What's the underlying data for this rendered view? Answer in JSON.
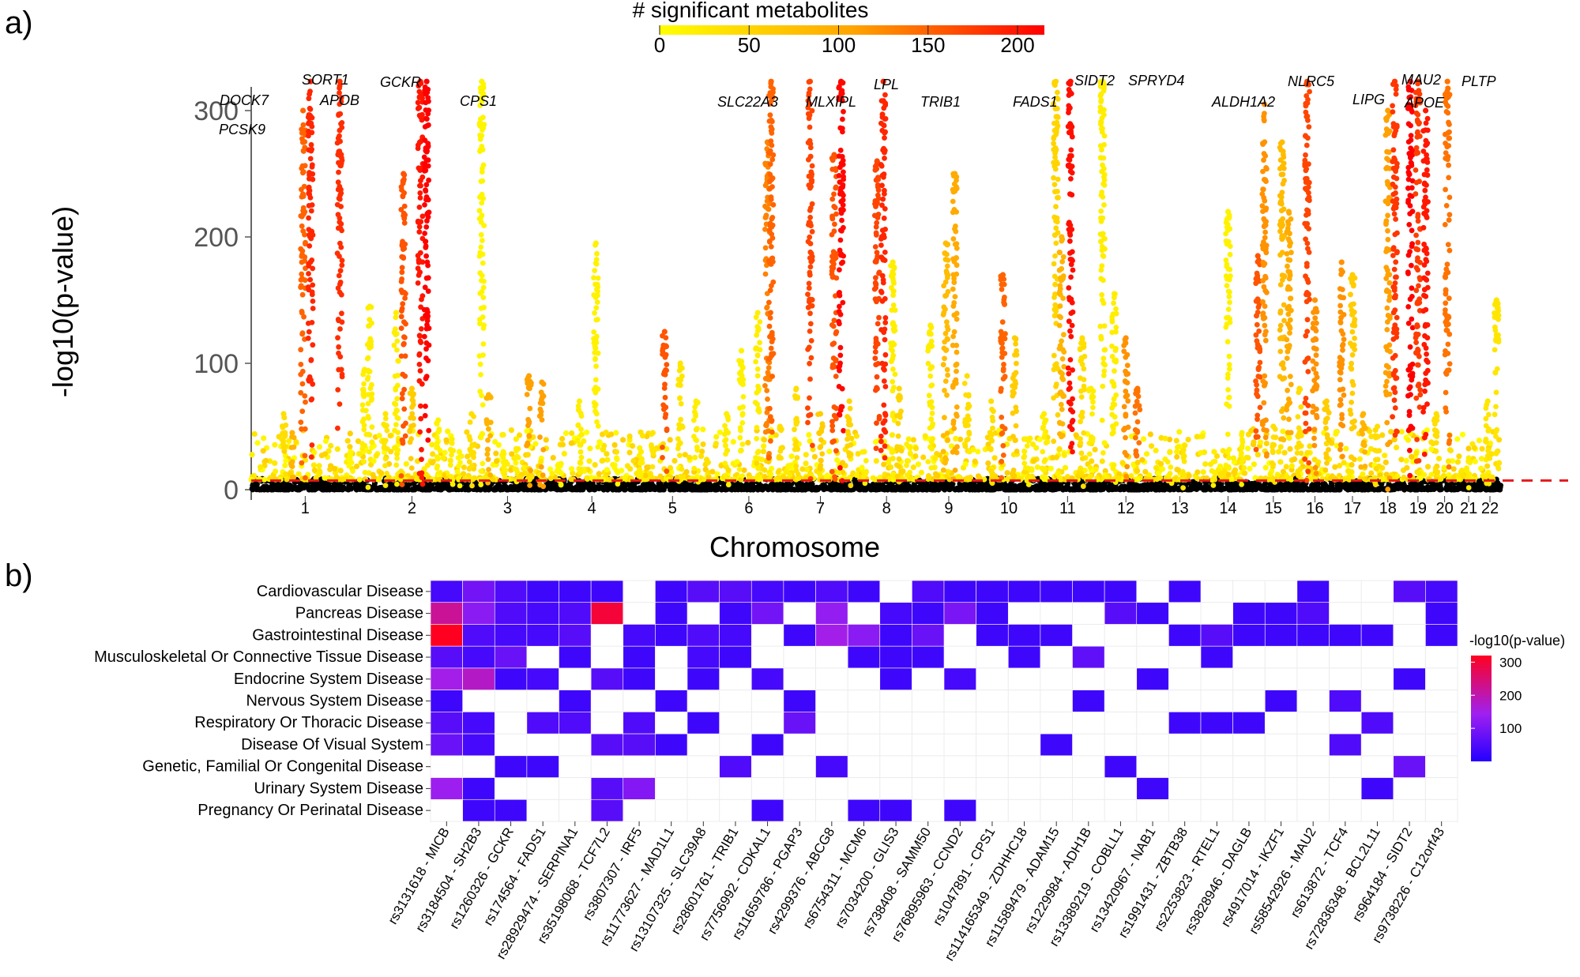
{
  "panel_a_label": "a)",
  "panel_b_label": "b)",
  "chart_data": [
    {
      "type": "scatter",
      "subtype": "manhattan",
      "title": "",
      "xlabel": "Chromosome",
      "ylabel": "-log10(p-value)",
      "ylim": [
        0,
        325
      ],
      "yticks": [
        0,
        100,
        200,
        300
      ],
      "significance_threshold": 7.3,
      "chromosomes": [
        "1",
        "2",
        "3",
        "4",
        "5",
        "6",
        "7",
        "8",
        "9",
        "10",
        "11",
        "12",
        "13",
        "14",
        "15",
        "16",
        "17",
        "18",
        "19",
        "20",
        "21",
        "22"
      ],
      "colorbar": {
        "title": "# significant metabolites",
        "ticks": [
          0,
          50,
          100,
          150,
          200
        ],
        "range": [
          0,
          215
        ],
        "low_color": "#ffff00",
        "mid_color": "#ffa500",
        "high_color": "#ff0000"
      },
      "peaks": [
        {
          "chr": "1",
          "pos": 0.3,
          "y": 60,
          "n": 40
        },
        {
          "chr": "1",
          "pos": 0.38,
          "y": 45,
          "n": 90
        },
        {
          "chr": "1",
          "pos": 0.48,
          "y": 300,
          "n": 150
        },
        {
          "chr": "1",
          "pos": 0.55,
          "y": 323,
          "n": 190
        },
        {
          "chr": "1",
          "pos": 0.82,
          "y": 323,
          "n": 185
        },
        {
          "chr": "1",
          "pos": 0.92,
          "y": 30,
          "n": 10
        },
        {
          "chr": "2",
          "pos": 0.05,
          "y": 95,
          "n": 20
        },
        {
          "chr": "2",
          "pos": 0.1,
          "y": 145,
          "n": 20
        },
        {
          "chr": "2",
          "pos": 0.25,
          "y": 60,
          "n": 30
        },
        {
          "chr": "2",
          "pos": 0.35,
          "y": 140,
          "n": 20
        },
        {
          "chr": "2",
          "pos": 0.42,
          "y": 250,
          "n": 160
        },
        {
          "chr": "2",
          "pos": 0.5,
          "y": 80,
          "n": 60
        },
        {
          "chr": "2",
          "pos": 0.58,
          "y": 323,
          "n": 200
        },
        {
          "chr": "2",
          "pos": 0.64,
          "y": 323,
          "n": 215
        },
        {
          "chr": "2",
          "pos": 0.75,
          "y": 55,
          "n": 15
        },
        {
          "chr": "2",
          "pos": 0.88,
          "y": 40,
          "n": 20
        },
        {
          "chr": "2",
          "pos": 0.95,
          "y": 30,
          "n": 10
        },
        {
          "chr": "3",
          "pos": 0.08,
          "y": 60,
          "n": 40
        },
        {
          "chr": "3",
          "pos": 0.2,
          "y": 323,
          "n": 12
        },
        {
          "chr": "3",
          "pos": 0.28,
          "y": 75,
          "n": 90
        },
        {
          "chr": "3",
          "pos": 0.45,
          "y": 30,
          "n": 15
        },
        {
          "chr": "3",
          "pos": 0.6,
          "y": 40,
          "n": 20
        },
        {
          "chr": "3",
          "pos": 0.75,
          "y": 90,
          "n": 110
        },
        {
          "chr": "3",
          "pos": 0.9,
          "y": 85,
          "n": 110
        },
        {
          "chr": "4",
          "pos": 0.1,
          "y": 20,
          "n": 10
        },
        {
          "chr": "4",
          "pos": 0.35,
          "y": 70,
          "n": 20
        },
        {
          "chr": "4",
          "pos": 0.55,
          "y": 195,
          "n": 15
        },
        {
          "chr": "4",
          "pos": 0.8,
          "y": 25,
          "n": 10
        },
        {
          "chr": "5",
          "pos": 0.1,
          "y": 30,
          "n": 20
        },
        {
          "chr": "5",
          "pos": 0.25,
          "y": 45,
          "n": 30
        },
        {
          "chr": "5",
          "pos": 0.4,
          "y": 125,
          "n": 160
        },
        {
          "chr": "5",
          "pos": 0.6,
          "y": 100,
          "n": 30
        },
        {
          "chr": "5",
          "pos": 0.8,
          "y": 70,
          "n": 20
        },
        {
          "chr": "6",
          "pos": 0.2,
          "y": 60,
          "n": 20
        },
        {
          "chr": "6",
          "pos": 0.4,
          "y": 110,
          "n": 15
        },
        {
          "chr": "6",
          "pos": 0.62,
          "y": 140,
          "n": 20
        },
        {
          "chr": "6",
          "pos": 0.75,
          "y": 275,
          "n": 130
        },
        {
          "chr": "6",
          "pos": 0.8,
          "y": 323,
          "n": 150
        },
        {
          "chr": "6",
          "pos": 0.92,
          "y": 50,
          "n": 40
        },
        {
          "chr": "7",
          "pos": 0.15,
          "y": 80,
          "n": 40
        },
        {
          "chr": "7",
          "pos": 0.35,
          "y": 323,
          "n": 170
        },
        {
          "chr": "7",
          "pos": 0.5,
          "y": 60,
          "n": 60
        },
        {
          "chr": "7",
          "pos": 0.7,
          "y": 265,
          "n": 160
        },
        {
          "chr": "7",
          "pos": 0.8,
          "y": 323,
          "n": 210
        },
        {
          "chr": "7",
          "pos": 0.92,
          "y": 70,
          "n": 50
        },
        {
          "chr": "8",
          "pos": 0.15,
          "y": 30,
          "n": 20
        },
        {
          "chr": "8",
          "pos": 0.35,
          "y": 260,
          "n": 170
        },
        {
          "chr": "8",
          "pos": 0.45,
          "y": 323,
          "n": 190
        },
        {
          "chr": "8",
          "pos": 0.6,
          "y": 180,
          "n": 20
        },
        {
          "chr": "8",
          "pos": 0.7,
          "y": 80,
          "n": 50
        },
        {
          "chr": "8",
          "pos": 0.85,
          "y": 40,
          "n": 20
        },
        {
          "chr": "9",
          "pos": 0.2,
          "y": 130,
          "n": 20
        },
        {
          "chr": "9",
          "pos": 0.45,
          "y": 195,
          "n": 80
        },
        {
          "chr": "9",
          "pos": 0.6,
          "y": 250,
          "n": 100
        },
        {
          "chr": "9",
          "pos": 0.8,
          "y": 90,
          "n": 40
        },
        {
          "chr": "10",
          "pos": 0.2,
          "y": 70,
          "n": 40
        },
        {
          "chr": "10",
          "pos": 0.4,
          "y": 170,
          "n": 150
        },
        {
          "chr": "10",
          "pos": 0.6,
          "y": 120,
          "n": 60
        },
        {
          "chr": "10",
          "pos": 0.8,
          "y": 40,
          "n": 20
        },
        {
          "chr": "11",
          "pos": 0.1,
          "y": 60,
          "n": 20
        },
        {
          "chr": "11",
          "pos": 0.3,
          "y": 323,
          "n": 50
        },
        {
          "chr": "11",
          "pos": 0.4,
          "y": 200,
          "n": 90
        },
        {
          "chr": "11",
          "pos": 0.55,
          "y": 323,
          "n": 205
        },
        {
          "chr": "11",
          "pos": 0.75,
          "y": 120,
          "n": 40
        },
        {
          "chr": "11",
          "pos": 0.9,
          "y": 80,
          "n": 20
        },
        {
          "chr": "12",
          "pos": 0.1,
          "y": 323,
          "n": 20
        },
        {
          "chr": "12",
          "pos": 0.3,
          "y": 155,
          "n": 20
        },
        {
          "chr": "12",
          "pos": 0.5,
          "y": 120,
          "n": 120
        },
        {
          "chr": "12",
          "pos": 0.7,
          "y": 80,
          "n": 140
        },
        {
          "chr": "13",
          "pos": 0.3,
          "y": 30,
          "n": 20
        },
        {
          "chr": "13",
          "pos": 0.6,
          "y": 35,
          "n": 30
        },
        {
          "chr": "14",
          "pos": 0.2,
          "y": 30,
          "n": 20
        },
        {
          "chr": "14",
          "pos": 0.5,
          "y": 220,
          "n": 15
        },
        {
          "chr": "14",
          "pos": 0.8,
          "y": 45,
          "n": 20
        },
        {
          "chr": "15",
          "pos": 0.15,
          "y": 185,
          "n": 160
        },
        {
          "chr": "15",
          "pos": 0.3,
          "y": 305,
          "n": 120
        },
        {
          "chr": "15",
          "pos": 0.5,
          "y": 50,
          "n": 40
        },
        {
          "chr": "15",
          "pos": 0.7,
          "y": 275,
          "n": 80
        },
        {
          "chr": "15",
          "pos": 0.85,
          "y": 220,
          "n": 100
        },
        {
          "chr": "16",
          "pos": 0.1,
          "y": 80,
          "n": 40
        },
        {
          "chr": "16",
          "pos": 0.3,
          "y": 323,
          "n": 170
        },
        {
          "chr": "16",
          "pos": 0.5,
          "y": 150,
          "n": 120
        },
        {
          "chr": "16",
          "pos": 0.8,
          "y": 70,
          "n": 60
        },
        {
          "chr": "17",
          "pos": 0.2,
          "y": 180,
          "n": 120
        },
        {
          "chr": "17",
          "pos": 0.5,
          "y": 170,
          "n": 60
        },
        {
          "chr": "17",
          "pos": 0.8,
          "y": 60,
          "n": 90
        },
        {
          "chr": "18",
          "pos": 0.2,
          "y": 50,
          "n": 40
        },
        {
          "chr": "18",
          "pos": 0.5,
          "y": 300,
          "n": 110
        },
        {
          "chr": "18",
          "pos": 0.7,
          "y": 323,
          "n": 180
        },
        {
          "chr": "19",
          "pos": 0.2,
          "y": 323,
          "n": 215
        },
        {
          "chr": "19",
          "pos": 0.5,
          "y": 323,
          "n": 175
        },
        {
          "chr": "19",
          "pos": 0.8,
          "y": 300,
          "n": 200
        },
        {
          "chr": "20",
          "pos": 0.2,
          "y": 60,
          "n": 40
        },
        {
          "chr": "20",
          "pos": 0.6,
          "y": 323,
          "n": 140
        },
        {
          "chr": "21",
          "pos": 0.5,
          "y": 25,
          "n": 20
        },
        {
          "chr": "22",
          "pos": 0.4,
          "y": 70,
          "n": 30
        },
        {
          "chr": "22",
          "pos": 0.8,
          "y": 150,
          "n": 30
        }
      ],
      "gene_labels": [
        "DOCK7",
        "PCSK9",
        "SORT1",
        "APOB",
        "GCKR",
        "CPS1",
        "SLC22A3",
        "MLXIPL",
        "LPL",
        "TRIB1",
        "FADS1",
        "SIDT2",
        "SPRYD4",
        "ALDH1A2",
        "NLRC5",
        "LIPG",
        "MAU2",
        "APOE",
        "PLTP"
      ]
    },
    {
      "type": "heatmap",
      "title": "",
      "legend_title": "-log10(p-value)",
      "legend_ticks": [
        100,
        200,
        300
      ],
      "legend_range": [
        0,
        320
      ],
      "low_color": "#2400ff",
      "mid_color": "#a020f0",
      "high_color": "#ff0020",
      "rows": [
        "Cardiovascular Disease",
        "Pancreas Disease",
        "Gastrointestinal Disease",
        "Musculoskeletal Or Connective Tissue Disease",
        "Endocrine System Disease",
        "Nervous System Disease",
        "Respiratory Or Thoracic Disease",
        "Disease Of Visual System",
        "Genetic, Familial Or Congenital Disease",
        "Urinary System Disease",
        "Pregnancy Or Perinatal Disease"
      ],
      "columns": [
        "rs3131618 - MICB",
        "rs3184504 - SH2B3",
        "rs1260326 - GCKR",
        "rs174564 - FADS1",
        "rs28929474 - SERPINA1",
        "rs35198068 - TCF7L2",
        "rs3807307 - IRF5",
        "rs11773627 - MAD1L1",
        "rs13107325 - SLC39A8",
        "rs28601761 - TRIB1",
        "rs7756992 - CDKAL1",
        "rs11659786 - PGAP3",
        "rs4299376 - ABCG8",
        "rs6754311 - MCM6",
        "rs7034200 - GLIS3",
        "rs738408 - SAMM50",
        "rs76895963 - CCND2",
        "rs1047891 - CPS1",
        "rs114165349 - ZDHHC18",
        "rs11589479 - ADAM15",
        "rs1229984 - ADH1B",
        "rs13389219 - COBLL1",
        "rs13420967 - NAB1",
        "rs1991431 - ZBTB38",
        "rs2253823 - RTEL1",
        "rs3828946 - DAGLB",
        "rs4917014 - IKZF1",
        "rs58542926 - MAU2",
        "rs613872 - TCF4",
        "rs72836348 - BCL2L11",
        "rs964184 - SIDT2",
        "rs9738226 - C12orf43"
      ],
      "values": [
        [
          40,
          90,
          50,
          30,
          30,
          30,
          null,
          30,
          60,
          60,
          40,
          30,
          50,
          30,
          null,
          50,
          30,
          30,
          30,
          30,
          30,
          30,
          null,
          30,
          null,
          null,
          null,
          30,
          null,
          null,
          60,
          40
        ],
        [
          220,
          120,
          50,
          40,
          50,
          300,
          null,
          30,
          null,
          30,
          90,
          null,
          130,
          null,
          40,
          30,
          100,
          30,
          null,
          null,
          null,
          60,
          30,
          null,
          null,
          30,
          30,
          50,
          null,
          null,
          null,
          30
        ],
        [
          320,
          50,
          40,
          40,
          60,
          null,
          40,
          30,
          50,
          40,
          null,
          30,
          150,
          120,
          30,
          80,
          null,
          30,
          30,
          30,
          null,
          null,
          null,
          30,
          60,
          30,
          30,
          30,
          30,
          30,
          null,
          30
        ],
        [
          60,
          40,
          80,
          null,
          30,
          null,
          30,
          null,
          40,
          30,
          null,
          null,
          null,
          30,
          30,
          30,
          null,
          null,
          30,
          null,
          70,
          null,
          null,
          null,
          30,
          null,
          null,
          null,
          null,
          null,
          null,
          null
        ],
        [
          150,
          180,
          30,
          40,
          null,
          60,
          30,
          null,
          30,
          null,
          40,
          null,
          null,
          null,
          30,
          null,
          40,
          null,
          null,
          null,
          null,
          null,
          30,
          null,
          null,
          null,
          null,
          null,
          null,
          null,
          30,
          null
        ],
        [
          30,
          null,
          null,
          null,
          30,
          null,
          null,
          30,
          null,
          null,
          null,
          30,
          null,
          null,
          null,
          null,
          null,
          null,
          null,
          null,
          30,
          null,
          null,
          null,
          null,
          null,
          30,
          null,
          50,
          null,
          null,
          null
        ],
        [
          60,
          40,
          null,
          50,
          50,
          null,
          50,
          null,
          30,
          null,
          null,
          80,
          null,
          null,
          null,
          null,
          null,
          null,
          null,
          null,
          null,
          null,
          null,
          30,
          30,
          30,
          null,
          null,
          null,
          50,
          null,
          null
        ],
        [
          80,
          40,
          null,
          null,
          null,
          60,
          60,
          30,
          null,
          null,
          30,
          null,
          null,
          null,
          null,
          null,
          null,
          null,
          null,
          30,
          null,
          null,
          null,
          null,
          null,
          null,
          null,
          null,
          50,
          null,
          null,
          null
        ],
        [
          null,
          null,
          30,
          30,
          null,
          null,
          null,
          null,
          null,
          50,
          null,
          null,
          40,
          null,
          null,
          null,
          null,
          null,
          null,
          null,
          null,
          30,
          null,
          null,
          null,
          null,
          null,
          null,
          null,
          null,
          80,
          null
        ],
        [
          140,
          30,
          null,
          null,
          null,
          60,
          110,
          null,
          null,
          null,
          null,
          null,
          null,
          null,
          null,
          null,
          null,
          null,
          null,
          null,
          null,
          null,
          30,
          null,
          null,
          null,
          null,
          null,
          null,
          30,
          null,
          null
        ],
        [
          null,
          30,
          30,
          null,
          null,
          60,
          null,
          null,
          null,
          null,
          30,
          null,
          null,
          30,
          30,
          null,
          30,
          null,
          null,
          null,
          null,
          null,
          null,
          null,
          null,
          null,
          null,
          null,
          null,
          null,
          null,
          null
        ]
      ]
    }
  ]
}
